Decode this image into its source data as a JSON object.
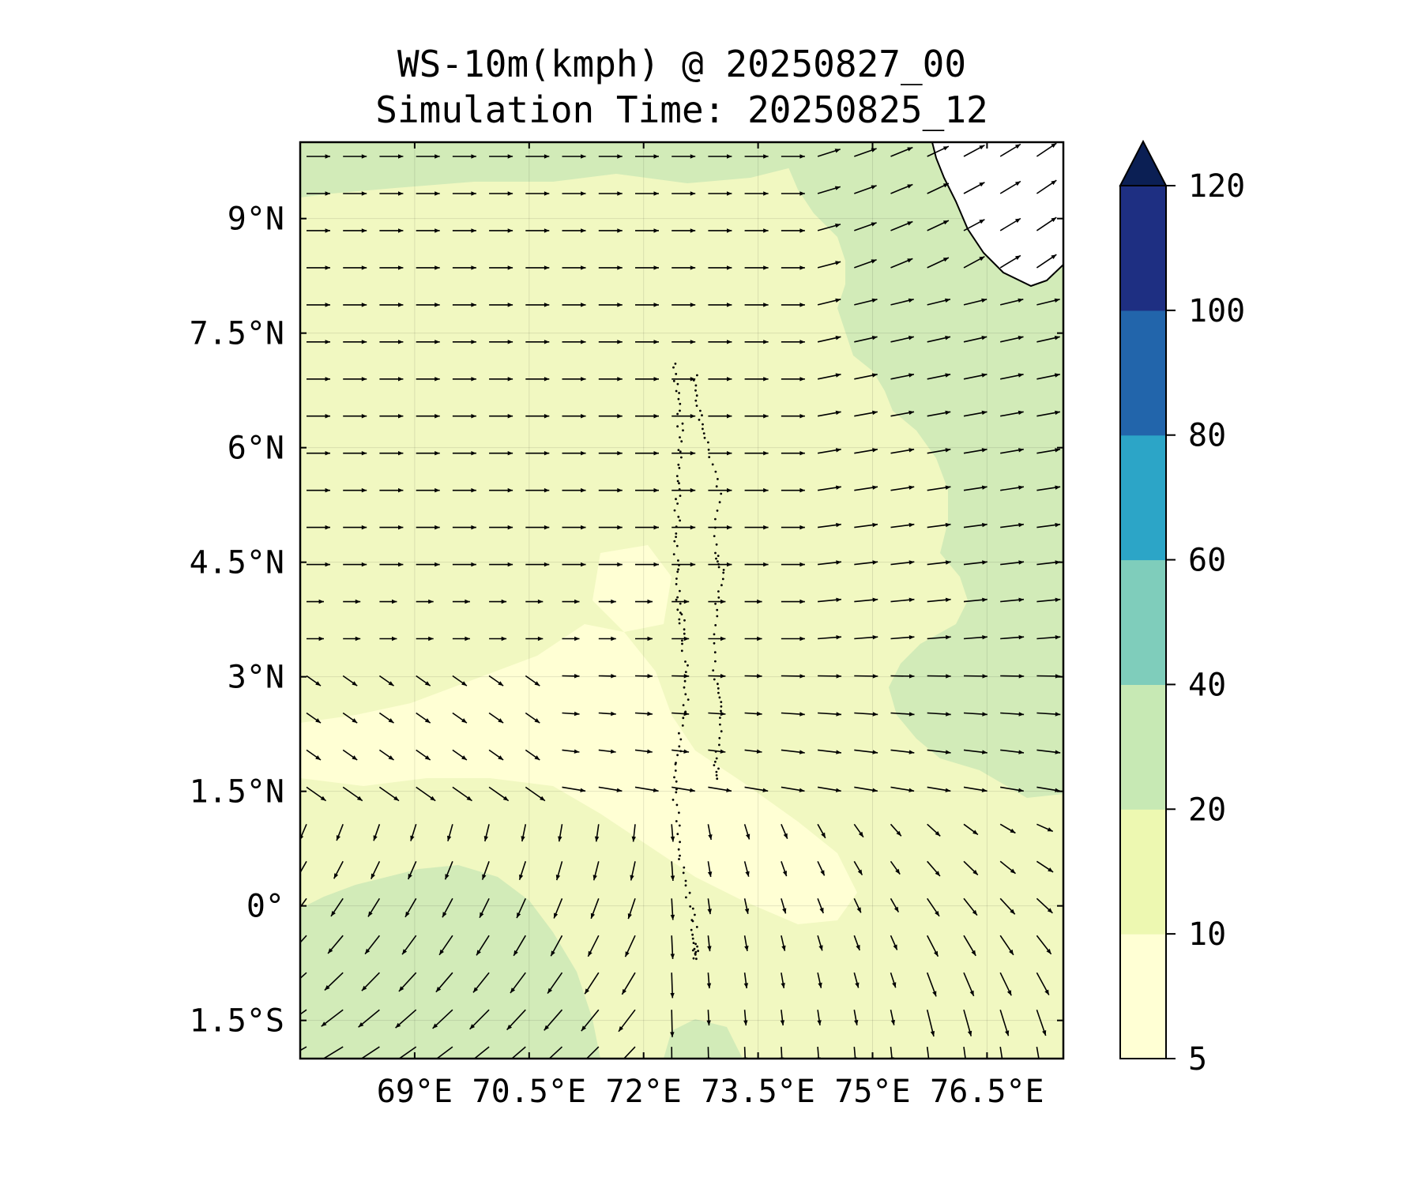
{
  "title": {
    "line1": "WS-10m(kmph) @ 20250827_00",
    "line2": "Simulation Time: 20250825_12"
  },
  "map": {
    "projection": "PlateCarree",
    "lon_range": [
      67.5,
      77.5
    ],
    "lat_range": [
      -2.0,
      10.0
    ],
    "x_ticks": [
      {
        "value": 69.0,
        "label": "69°E"
      },
      {
        "value": 70.5,
        "label": "70.5°E"
      },
      {
        "value": 72.0,
        "label": "72°E"
      },
      {
        "value": 73.5,
        "label": "73.5°E"
      },
      {
        "value": 75.0,
        "label": "75°E"
      },
      {
        "value": 76.5,
        "label": "76.5°E"
      }
    ],
    "y_ticks": [
      {
        "value": 9.0,
        "label": "9°N"
      },
      {
        "value": 7.5,
        "label": "7.5°N"
      },
      {
        "value": 6.0,
        "label": "6°N"
      },
      {
        "value": 4.5,
        "label": "4.5°N"
      },
      {
        "value": 3.0,
        "label": "3°N"
      },
      {
        "value": 1.5,
        "label": "1.5°N"
      },
      {
        "value": 0.0,
        "label": "0°"
      },
      {
        "value": -1.5,
        "label": "1.5°S"
      }
    ],
    "gridlines": true,
    "fill_colors": {
      "lt10": "#ffffd4",
      "10_20": "#f1f8c1",
      "20_40": "#d2ebb8"
    },
    "land_color": "#ffffff",
    "vector_color": "#000000"
  },
  "colorbar": {
    "levels": [
      5,
      10,
      20,
      40,
      60,
      80,
      100,
      120
    ],
    "tick_labels": [
      "5",
      "10",
      "20",
      "40",
      "60",
      "80",
      "100",
      "120"
    ],
    "colors": [
      "#ffffd4",
      "#edf8b1",
      "#c7e9b4",
      "#7fcdbb",
      "#2ca5c7",
      "#2265ab",
      "#1e2f82"
    ],
    "extend_color": "#0b1f54",
    "extend": "max"
  }
}
